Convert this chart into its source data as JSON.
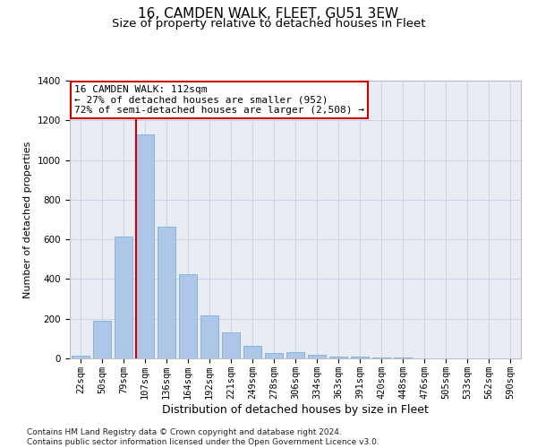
{
  "title": "16, CAMDEN WALK, FLEET, GU51 3EW",
  "subtitle": "Size of property relative to detached houses in Fleet",
  "xlabel": "Distribution of detached houses by size in Fleet",
  "ylabel": "Number of detached properties",
  "categories": [
    "22sqm",
    "50sqm",
    "79sqm",
    "107sqm",
    "136sqm",
    "164sqm",
    "192sqm",
    "221sqm",
    "249sqm",
    "278sqm",
    "306sqm",
    "334sqm",
    "363sqm",
    "391sqm",
    "420sqm",
    "448sqm",
    "476sqm",
    "505sqm",
    "533sqm",
    "562sqm",
    "590sqm"
  ],
  "values": [
    15,
    190,
    615,
    1130,
    665,
    425,
    215,
    130,
    65,
    25,
    30,
    20,
    10,
    8,
    5,
    3,
    2,
    1,
    1,
    0,
    0
  ],
  "bar_color": "#aec6e8",
  "bar_edgecolor": "#7bafd4",
  "vline_color": "#cc0000",
  "annotation_text": "16 CAMDEN WALK: 112sqm\n← 27% of detached houses are smaller (952)\n72% of semi-detached houses are larger (2,508) →",
  "annotation_box_edgecolor": "#cc0000",
  "grid_color": "#c8d4e8",
  "background_color": "#eaecf4",
  "ylim": [
    0,
    1400
  ],
  "yticks": [
    0,
    200,
    400,
    600,
    800,
    1000,
    1200,
    1400
  ],
  "footer": "Contains HM Land Registry data © Crown copyright and database right 2024.\nContains public sector information licensed under the Open Government Licence v3.0.",
  "title_fontsize": 11,
  "subtitle_fontsize": 9.5,
  "xlabel_fontsize": 9,
  "ylabel_fontsize": 8,
  "tick_fontsize": 7.5,
  "annotation_fontsize": 8,
  "footer_fontsize": 6.5
}
